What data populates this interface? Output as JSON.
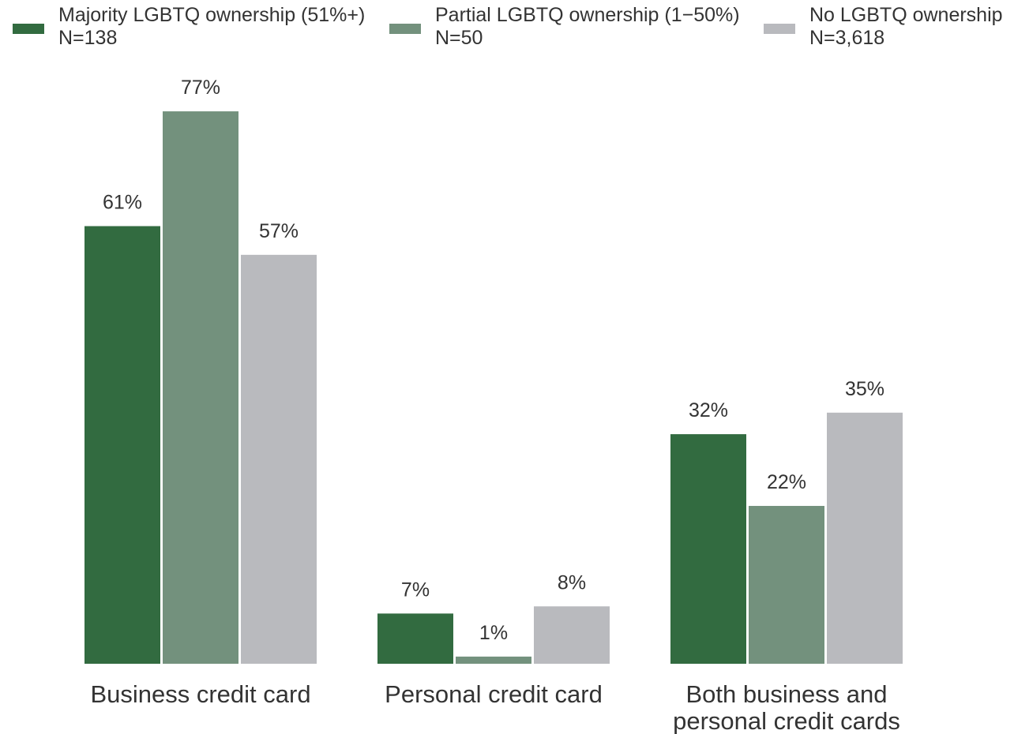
{
  "chart_data": {
    "type": "bar",
    "categories": [
      [
        "Business credit card"
      ],
      [
        "Personal credit card"
      ],
      [
        "Both business and",
        "personal credit cards"
      ]
    ],
    "series": [
      {
        "name": "Majority LGBTQ ownership (51%+)",
        "n_label": "N=138",
        "color": "#326b40",
        "values": [
          61,
          7,
          32
        ],
        "labels": [
          "61%",
          "7%",
          "32%"
        ]
      },
      {
        "name": "Partial LGBTQ ownership (1−50%)",
        "n_label": "N=50",
        "color": "#73917d",
        "values": [
          77,
          1,
          22
        ],
        "labels": [
          "77%",
          "1%",
          "22%"
        ]
      },
      {
        "name": "No LGBTQ ownership",
        "n_label": "N=3,618",
        "color": "#b9babe",
        "values": [
          57,
          8,
          35
        ],
        "labels": [
          "57%",
          "8%",
          "35%"
        ]
      }
    ],
    "ylim": [
      0,
      100
    ],
    "grid": false,
    "legend_position": "top"
  }
}
